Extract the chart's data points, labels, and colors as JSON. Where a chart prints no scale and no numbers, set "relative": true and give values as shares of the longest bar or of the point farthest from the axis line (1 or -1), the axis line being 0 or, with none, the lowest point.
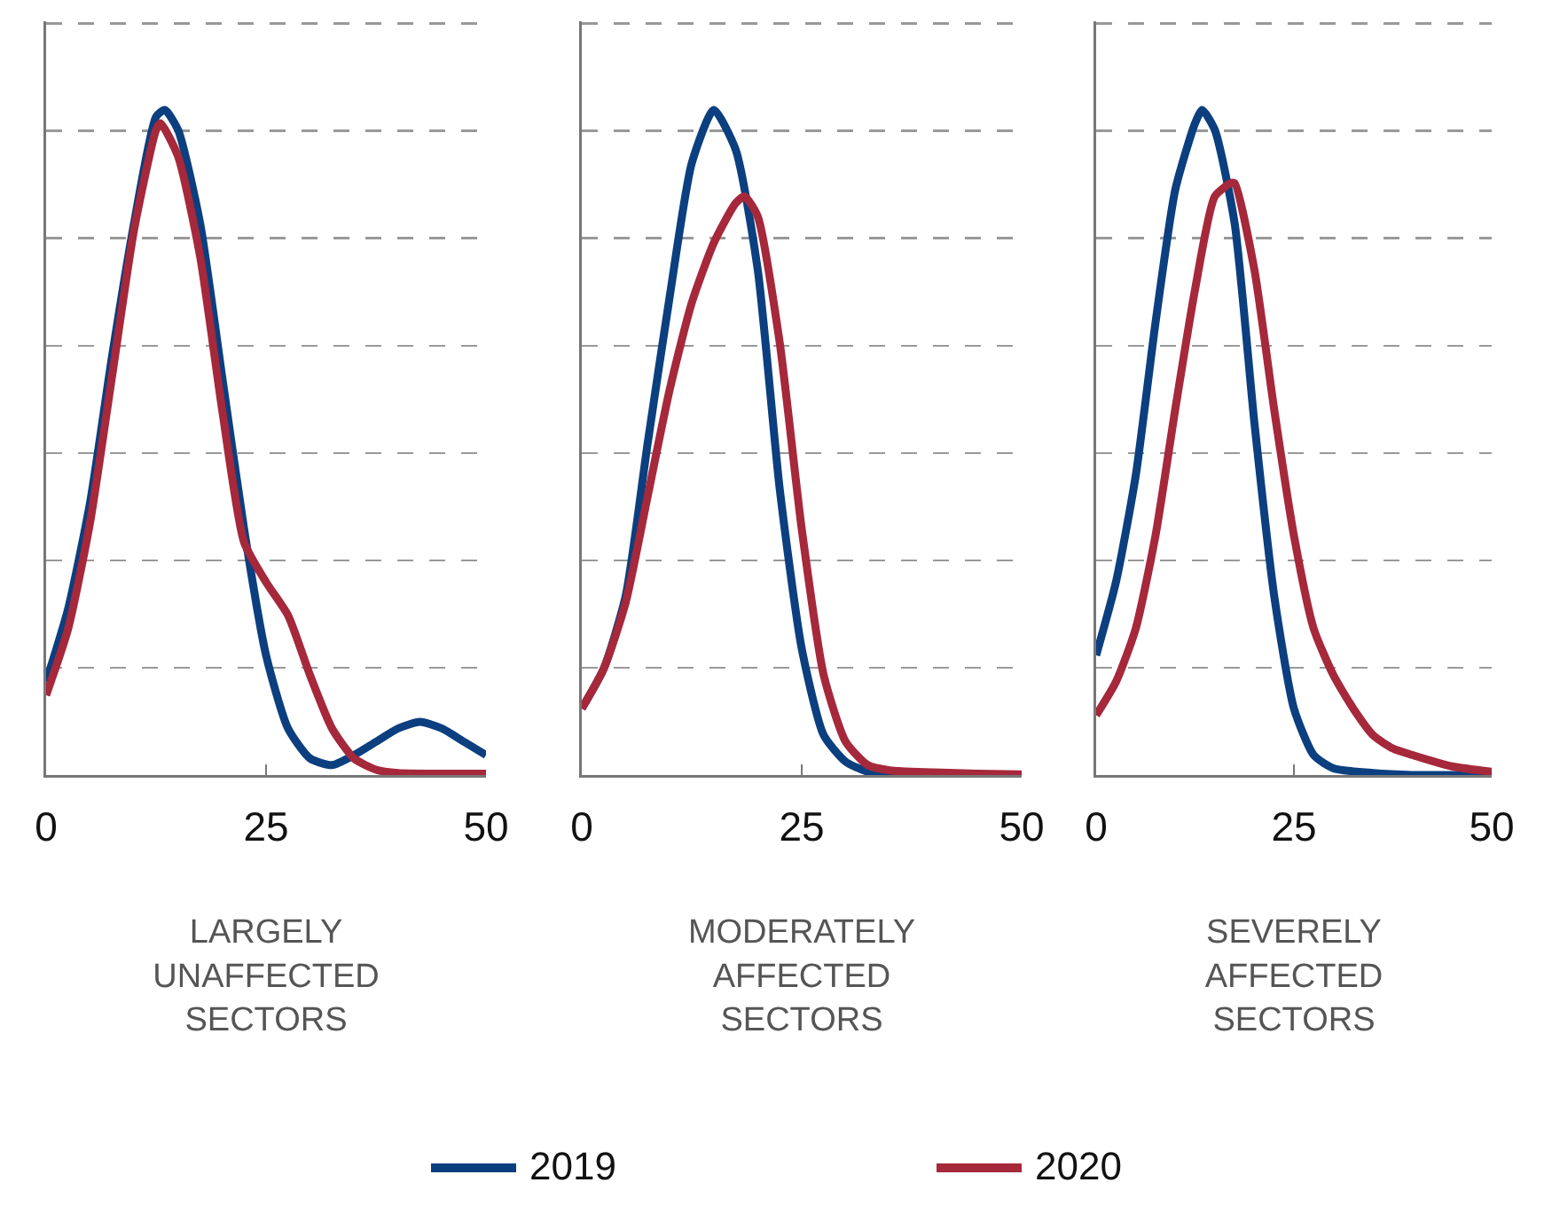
{
  "chart_data": [
    {
      "type": "line",
      "relative": true,
      "xlabel": "LARGELY UNAFFECTED SECTORS",
      "xlim": [
        0,
        50
      ],
      "xticks": [
        0,
        25,
        50
      ],
      "grid": "y",
      "legend": "bottom",
      "marker": "none",
      "series": [
        {
          "name": "2019",
          "color": "#0b3f7f",
          "x": [
            0,
            2.5,
            5,
            7.5,
            10,
            12.5,
            13.5,
            15,
            17.5,
            20,
            22.5,
            25,
            27.5,
            30,
            32.5,
            35,
            37.5,
            40,
            42.5,
            45,
            47.5,
            50
          ],
          "values": [
            0.14,
            0.25,
            0.41,
            0.63,
            0.83,
            0.99,
            1,
            0.97,
            0.83,
            0.6,
            0.37,
            0.18,
            0.07,
            0.025,
            0.015,
            0.03,
            0.05,
            0.07,
            0.08,
            0.07,
            0.05,
            0.03
          ]
        },
        {
          "name": "2020",
          "color": "#a6283b",
          "x": [
            0,
            2.5,
            5,
            7.5,
            10,
            12.5,
            13,
            15,
            17.5,
            20,
            22.5,
            25,
            27.5,
            30,
            32.5,
            35,
            37.5,
            40,
            45,
            50
          ],
          "values": [
            0.12,
            0.22,
            0.38,
            0.6,
            0.82,
            0.97,
            0.98,
            0.93,
            0.78,
            0.55,
            0.35,
            0.29,
            0.24,
            0.15,
            0.07,
            0.025,
            0.008,
            0.003,
            0.002,
            0.002
          ]
        }
      ]
    },
    {
      "type": "line",
      "relative": true,
      "xlabel": "MODERATELY AFFECTED SECTORS",
      "xlim": [
        0,
        50
      ],
      "xticks": [
        0,
        25,
        50
      ],
      "grid": "y",
      "marker": "none",
      "series": [
        {
          "name": "2019",
          "color": "#0b3f7f",
          "x": [
            0,
            2.5,
            5,
            7.5,
            10,
            12.5,
            15,
            17.5,
            20,
            22.5,
            25,
            27.5,
            30,
            32.5,
            35,
            40
          ],
          "values": [
            0.1,
            0.16,
            0.27,
            0.5,
            0.72,
            0.92,
            1,
            0.94,
            0.76,
            0.43,
            0.19,
            0.06,
            0.02,
            0.005,
            0.002,
            0
          ]
        },
        {
          "name": "2020",
          "color": "#a6283b",
          "x": [
            0,
            2.5,
            5,
            7.5,
            10,
            12.5,
            15,
            17.5,
            18.5,
            20,
            22.5,
            25,
            27.5,
            30,
            32.5,
            35,
            40,
            45,
            50
          ],
          "values": [
            0.1,
            0.16,
            0.26,
            0.42,
            0.58,
            0.71,
            0.8,
            0.86,
            0.87,
            0.84,
            0.65,
            0.37,
            0.15,
            0.05,
            0.015,
            0.007,
            0.004,
            0.002,
            0.001
          ]
        }
      ]
    },
    {
      "type": "line",
      "relative": true,
      "xlabel": "SEVERELY AFFECTED SECTORS",
      "xlim": [
        0,
        50
      ],
      "xticks": [
        0,
        25,
        50
      ],
      "grid": "y",
      "marker": "none",
      "series": [
        {
          "name": "2019",
          "color": "#0b3f7f",
          "x": [
            0,
            2.5,
            5,
            7.5,
            10,
            12.5,
            13.4,
            15,
            17.5,
            20,
            22.5,
            25,
            27.5,
            30,
            35,
            40,
            45,
            50
          ],
          "values": [
            0.18,
            0.29,
            0.45,
            0.68,
            0.88,
            0.98,
            1,
            0.97,
            0.83,
            0.53,
            0.27,
            0.1,
            0.03,
            0.01,
            0.003,
            0,
            0,
            0
          ]
        },
        {
          "name": "2020",
          "color": "#a6283b",
          "x": [
            0,
            2.5,
            5,
            7.5,
            10,
            12.5,
            15,
            17,
            17.5,
            20,
            22.5,
            25,
            27.5,
            30,
            32.5,
            35,
            37.5,
            40,
            45,
            50
          ],
          "values": [
            0.09,
            0.14,
            0.22,
            0.36,
            0.55,
            0.73,
            0.87,
            0.89,
            0.89,
            0.76,
            0.55,
            0.36,
            0.22,
            0.15,
            0.1,
            0.06,
            0.04,
            0.03,
            0.013,
            0.005
          ]
        }
      ]
    }
  ]
}
